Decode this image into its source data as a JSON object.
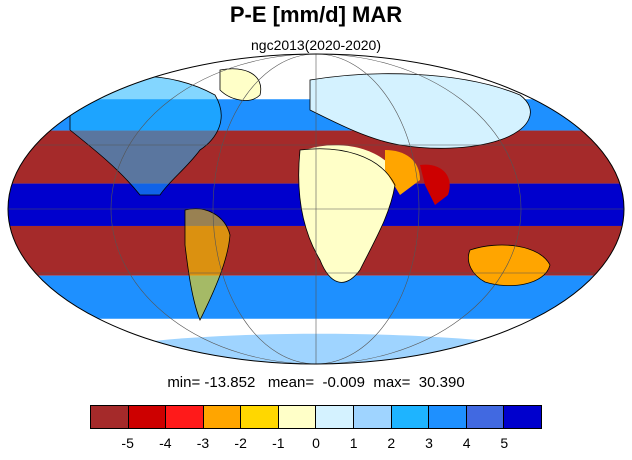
{
  "title": "P-E [mm/d] MAR",
  "subtitle": "ngc2013(2020-2020)",
  "stats": {
    "min_label": "min=",
    "min_value": "-13.852",
    "mean_label": "mean=",
    "mean_value": "-0.009",
    "max_label": "max=",
    "max_value": "30.390"
  },
  "colorbar": {
    "colors": [
      "#a52a2a",
      "#cd0000",
      "#ff1a1a",
      "#ffa500",
      "#ffd700",
      "#ffffc8",
      "#d4f2ff",
      "#9fd4ff",
      "#1eb4ff",
      "#1e90ff",
      "#4169e1",
      "#0000cd"
    ],
    "tick_labels": [
      "-5",
      "-4",
      "-3",
      "-2",
      "-1",
      "0",
      "1",
      "2",
      "3",
      "4",
      "5"
    ]
  },
  "map": {
    "projection": "mollweide",
    "ocean_bands": [
      {
        "lat_from": 90,
        "lat_to": 55,
        "color": "#d4f2ff"
      },
      {
        "lat_from": 55,
        "lat_to": 38,
        "color": "#1e90ff"
      },
      {
        "lat_from": 38,
        "lat_to": 12,
        "color": "#a52a2a"
      },
      {
        "lat_from": 12,
        "lat_to": -8,
        "color": "#0000cd"
      },
      {
        "lat_from": -8,
        "lat_to": -32,
        "color": "#a52a2a"
      },
      {
        "lat_from": -32,
        "lat_to": -55,
        "color": "#1e90ff"
      },
      {
        "lat_from": -55,
        "lat_to": -90,
        "color": "#d4f2ff"
      }
    ]
  }
}
